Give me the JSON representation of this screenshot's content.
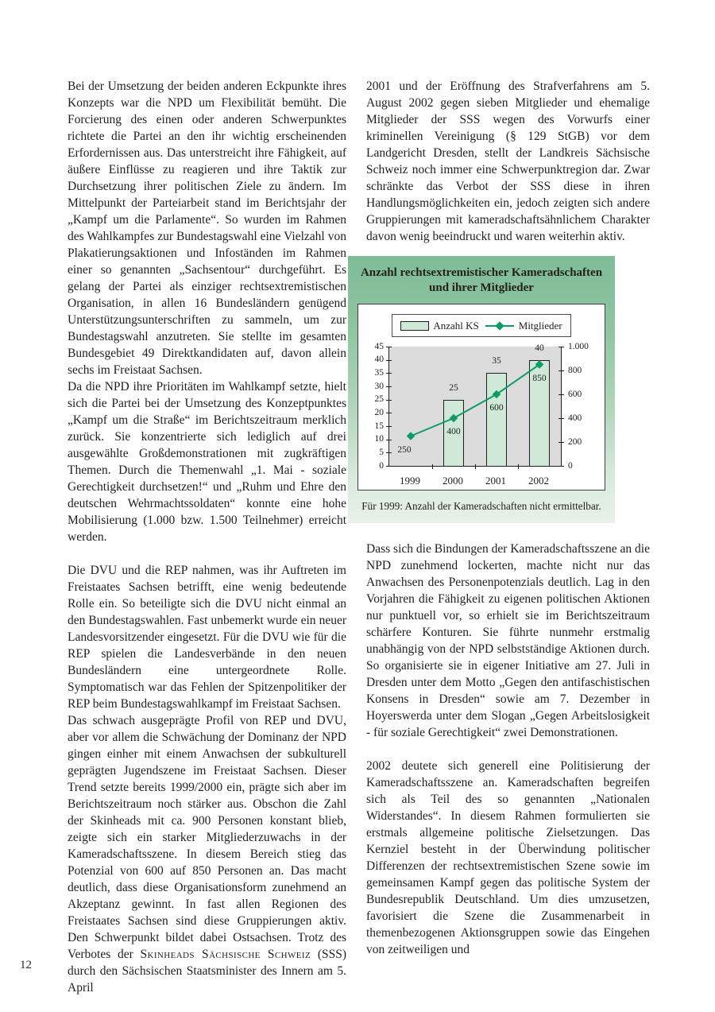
{
  "page_number": "12",
  "left_column": {
    "p1": "Bei der Umsetzung der beiden anderen Eckpunkte ihres Konzepts war die NPD um Flexibilität bemüht. Die Forcierung des einen oder anderen Schwerpunktes richtete die Partei an den ihr wichtig erscheinenden Erfordernissen aus. Das unterstreicht ihre Fähigkeit, auf äußere Einflüsse zu reagieren und ihre Taktik zur Durchsetzung ihrer politischen Ziele zu ändern. Im Mittelpunkt der Parteiarbeit stand im Berichtsjahr der „Kampf um die Parlamente“. So wurden im Rahmen des Wahlkampfes zur Bundestagswahl eine Vielzahl von Plakatierungsaktionen und Infoständen im Rahmen einer so genannten „Sachsentour“ durchgeführt. Es gelang der Partei als einziger rechtsextremistischen Organisation, in allen 16 Bundesländern genügend Unterstützungsunterschriften zu sammeln, um zur Bundestagswahl anzutreten. Sie stellte im gesamten Bundesgebiet 49 Direktkandidaten auf, davon allein sechs im Freistaat Sachsen.",
    "p2": "Da die NPD ihre Prioritäten im Wahlkampf setzte, hielt sich die Partei bei der Umsetzung des Konzeptpunktes „Kampf um die Straße“ im Berichtszeitraum merklich zurück. Sie konzentrierte sich lediglich auf drei ausgewählte Großdemonstrationen mit zugkräftigen Themen. Durch die Themenwahl „1. Mai - soziale Gerechtigkeit durchsetzen!“ und „Ruhm und Ehre den deutschen Wehrmachtssoldaten“ konnte eine hohe Mobilisierung (1.000 bzw. 1.500 Teilnehmer) erreicht werden.",
    "p3": "Die DVU und die REP nahmen, was ihr Auftreten im Freistaates Sachsen betrifft, eine wenig bedeutende Rolle ein. So beteiligte sich die DVU nicht einmal an den Bundestagswahlen. Fast unbemerkt wurde ein neuer Landesvorsitzender eingesetzt. Für die DVU wie für die REP spielen die Landesverbände in den neuen Bundesländern eine untergeordnete Rolle. Symptomatisch war das Fehlen der Spitzenpolitiker der REP beim Bundestagswahlkampf im Freistaat Sachsen.",
    "p4_pre": "Das schwach ausgeprägte Profil von REP und DVU, aber vor allem die Schwächung der Dominanz der NPD gingen einher mit einem Anwachsen der subkulturell geprägten Jugendszene im Freistaat Sachsen. Dieser Trend setzte bereits 1999/2000 ein, prägte sich aber im Berichtszeitraum noch stärker aus. Obschon die Zahl der Skinheads mit ca. 900 Personen konstant blieb, zeigte sich ein starker Mitgliederzuwachs in der Kameradschaftsszene. In diesem Bereich stieg das Potenzial von 600 auf 850 Personen an. Das macht deutlich, dass diese Organisationsform zunehmend an Akzeptanz gewinnt. In fast allen Regionen des Freistaates Sachsen sind diese Gruppierungen aktiv. Den Schwerpunkt bildet dabei Ostsachsen. Trotz des Verbotes der ",
    "p4_smallcaps": "Skinheads Sächsische Schweiz",
    "p4_post": " (SSS) durch den Sächsischen Staatsminister des Innern am 5. April"
  },
  "right_column": {
    "p1": "2001 und der Eröffnung des Strafverfahrens am 5. August 2002 gegen sieben Mitglieder und ehemalige Mitglieder der SSS wegen des Vorwurfs einer kriminellen Vereinigung (§ 129 StGB) vor dem Landgericht Dresden, stellt der Landkreis Sächsische Schweiz noch immer eine Schwerpunktregion dar. Zwar schränkte das Verbot der SSS diese in ihren Handlungsmöglichkeiten ein, jedoch zeigten sich andere Gruppierungen mit kameradschaftsähnlichem Charakter davon wenig beeindruckt und waren weiterhin aktiv.",
    "p2": "Dass sich die Bindungen der Kameradschaftsszene an die NPD zunehmend lockerten, machte nicht nur das Anwachsen des Personenpotenzials deutlich. Lag in den Vorjahren die Fähigkeit zu eigenen politischen Aktionen nur punktuell vor, so erhielt sie im Berichtszeitraum schärfere Konturen. Sie führte nunmehr erstmalig unabhängig von der NPD selbstständige Aktionen durch. So organisierte sie in eigener Initiative am 27. Juli in Dresden unter dem Motto „Gegen den antifaschistischen Konsens in Dresden“ sowie am 7. Dezember in Hoyerswerda unter dem Slogan „Gegen Arbeitslosigkeit - für soziale Gerechtigkeit“ zwei Demonstrationen.",
    "p3": "2002 deutete sich generell eine Politisierung der Kameradschaftsszene an. Kameradschaften begreifen sich als Teil des so genannten „Nationalen Widerstandes“. In diesem Rahmen formulierten sie erstmals allgemeine politische Zielsetzungen. Das Kernziel besteht in der Überwindung politischer Differenzen der rechtsextremistischen Szene sowie im gemeinsamen Kampf gegen das politische System der Bundesrepublik Deutschland. Um dies umzusetzen, favorisiert die Szene die Zusammenarbeit in themenbezogenen Aktionsgruppen sowie das Eingehen von zeitweiligen und"
  },
  "chart_data": {
    "type": "bar",
    "title_line1": "Anzahl rechtsextremistischer Kameradschaften",
    "title_line2": "und ihrer Mitglieder",
    "categories": [
      "1999",
      "2000",
      "2001",
      "2002"
    ],
    "series": [
      {
        "name": "Anzahl KS",
        "type": "bar",
        "axis": "left",
        "values": [
          null,
          25,
          35,
          40
        ]
      },
      {
        "name": "Mitglieder",
        "type": "line",
        "axis": "right",
        "values": [
          250,
          400,
          600,
          850
        ]
      }
    ],
    "left_axis": {
      "min": 0,
      "max": 45,
      "step": 5,
      "tick_labels": [
        "45",
        "40",
        "35",
        "30",
        "25",
        "20",
        "15",
        "10",
        "5",
        "0"
      ]
    },
    "right_axis": {
      "min": 0,
      "max": 1000,
      "step": 200,
      "tick_labels": [
        "1.000",
        "800",
        "600",
        "400",
        "200",
        "0"
      ]
    },
    "legend_position": "top-center",
    "grid": false,
    "caption": "Für 1999: Anzahl der Kameradschaften nicht ermittelbar.",
    "colors": {
      "bar_fill": "#cfe8d8",
      "line": "#0d9b68",
      "plot_bg": "#dcdcdc",
      "panel_green": "#8fc5a1"
    }
  }
}
